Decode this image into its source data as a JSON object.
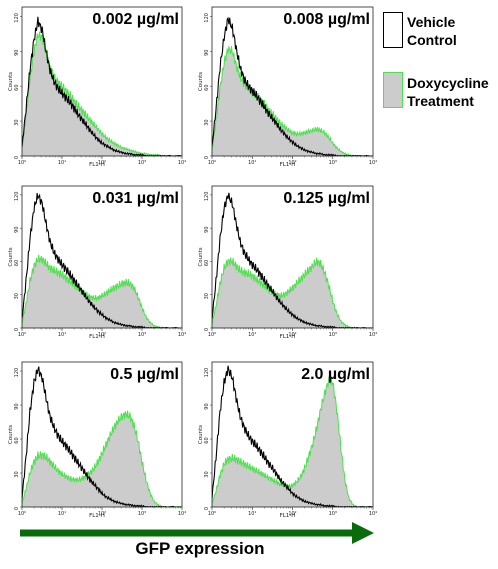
{
  "legend": {
    "vehicle_label": "Vehicle\nControl",
    "dox_label": "Doxycycline\nTreatment"
  },
  "colors": {
    "vehicle_line": "#000000",
    "dox_line": "#4ee04e",
    "dox_fill": "#cccccc",
    "arrow": "#0a6b0a"
  },
  "arrow_label": "GFP expression",
  "chart_data": [
    {
      "type": "area",
      "panel_label": "0.002 µg/ml",
      "xlabel": "FL1-H",
      "ylabel": "Counts",
      "x_scale": "log",
      "xlim": [
        1,
        10000
      ],
      "x_tick_labels": [
        "10⁰",
        "10¹",
        "10²",
        "10³",
        "10⁴"
      ],
      "y_tick_labels": [
        "0",
        "30",
        "60",
        "90",
        "120"
      ],
      "ylim": [
        0,
        128
      ],
      "series": [
        {
          "fill": "none",
          "x": [
            1.0,
            1.26,
            1.58,
            2.0,
            2.5,
            3.2,
            4.0,
            5.0,
            6.3,
            8.0,
            10,
            12.6,
            16,
            20,
            25,
            32,
            40,
            50,
            63,
            80,
            100,
            126,
            160,
            200,
            250,
            320,
            400,
            500,
            630,
            800,
            1000,
            1260,
            1600,
            2000,
            2500,
            3200,
            4000,
            10000
          ],
          "y": [
            8,
            40,
            74,
            100,
            116,
            108,
            90,
            74,
            64,
            58,
            54,
            50,
            46,
            41,
            36,
            31,
            27,
            22,
            18,
            14,
            11,
            9,
            7,
            5,
            4,
            3,
            2,
            2,
            1,
            1,
            1,
            0,
            0,
            0,
            0,
            0,
            0,
            0
          ]
        },
        {
          "fill": "gray",
          "x": [
            1.0,
            1.26,
            1.58,
            2.0,
            2.5,
            3.2,
            4.0,
            5.0,
            6.3,
            8.0,
            10,
            12.6,
            16,
            20,
            25,
            32,
            40,
            50,
            63,
            80,
            100,
            126,
            160,
            200,
            250,
            320,
            400,
            500,
            630,
            800,
            1000,
            1260,
            1600,
            2000,
            2500,
            3200,
            4000,
            10000
          ],
          "y": [
            6,
            35,
            66,
            90,
            104,
            102,
            88,
            76,
            68,
            63,
            60,
            56,
            52,
            47,
            43,
            39,
            35,
            31,
            27,
            23,
            19,
            16,
            13,
            11,
            9,
            7,
            6,
            5,
            4,
            3,
            2,
            2,
            1,
            1,
            1,
            0,
            0,
            0
          ]
        }
      ]
    },
    {
      "type": "area",
      "panel_label": "0.008 µg/ml",
      "xlabel": "FL1-H",
      "ylabel": "Counts",
      "x_scale": "log",
      "xlim": [
        1,
        10000
      ],
      "x_tick_labels": [
        "10⁰",
        "10¹",
        "10²",
        "10³",
        "10⁴"
      ],
      "y_tick_labels": [
        "0",
        "30",
        "60",
        "90",
        "120"
      ],
      "ylim": [
        0,
        128
      ],
      "series": [
        {
          "fill": "none",
          "x": [
            1.0,
            1.26,
            1.58,
            2.0,
            2.5,
            3.2,
            4.0,
            5.0,
            6.3,
            8.0,
            10,
            12.6,
            16,
            20,
            25,
            32,
            40,
            50,
            63,
            80,
            100,
            126,
            160,
            200,
            250,
            320,
            400,
            500,
            630,
            800,
            1000,
            1260,
            1600,
            2000,
            2500,
            3200,
            4000,
            10000
          ],
          "y": [
            8,
            40,
            76,
            102,
            118,
            110,
            92,
            76,
            66,
            60,
            56,
            52,
            47,
            42,
            37,
            32,
            28,
            23,
            19,
            15,
            12,
            9,
            7,
            5,
            4,
            3,
            2,
            2,
            1,
            1,
            1,
            0,
            0,
            0,
            0,
            0,
            0,
            0
          ]
        },
        {
          "fill": "gray",
          "x": [
            1.0,
            1.26,
            1.58,
            2.0,
            2.5,
            3.2,
            4.0,
            5.0,
            6.3,
            8.0,
            10,
            12.6,
            16,
            20,
            25,
            32,
            40,
            50,
            63,
            80,
            100,
            126,
            160,
            200,
            250,
            320,
            400,
            500,
            630,
            800,
            1000,
            1260,
            1600,
            2000,
            2500,
            3200,
            4000,
            10000
          ],
          "y": [
            5,
            30,
            58,
            80,
            92,
            90,
            78,
            68,
            62,
            58,
            55,
            52,
            48,
            44,
            40,
            36,
            32,
            28,
            25,
            22,
            20,
            19,
            19,
            20,
            21,
            22,
            23,
            22,
            20,
            16,
            11,
            7,
            4,
            2,
            1,
            0,
            0,
            0
          ]
        }
      ]
    },
    {
      "type": "area",
      "panel_label": "0.031 µg/ml",
      "xlabel": "FL1-H",
      "ylabel": "Counts",
      "x_scale": "log",
      "xlim": [
        1,
        10000
      ],
      "x_tick_labels": [
        "10⁰",
        "10¹",
        "10²",
        "10³",
        "10⁴"
      ],
      "y_tick_labels": [
        "0",
        "30",
        "60",
        "90",
        "120"
      ],
      "ylim": [
        0,
        128
      ],
      "series": [
        {
          "fill": "none",
          "x": [
            1.0,
            1.26,
            1.58,
            2.0,
            2.5,
            3.2,
            4.0,
            5.0,
            6.3,
            8.0,
            10,
            12.6,
            16,
            20,
            25,
            32,
            40,
            50,
            63,
            80,
            100,
            126,
            160,
            200,
            250,
            320,
            400,
            500,
            630,
            800,
            1000,
            1260,
            1600,
            2000,
            2500,
            3200,
            4000,
            10000
          ],
          "y": [
            8,
            42,
            80,
            108,
            120,
            112,
            94,
            78,
            68,
            62,
            57,
            53,
            48,
            43,
            38,
            33,
            28,
            23,
            19,
            15,
            12,
            9,
            7,
            5,
            4,
            3,
            2,
            2,
            1,
            1,
            1,
            0,
            0,
            0,
            0,
            0,
            0,
            0
          ]
        },
        {
          "fill": "gray",
          "x": [
            1.0,
            1.26,
            1.58,
            2.0,
            2.5,
            3.2,
            4.0,
            5.0,
            6.3,
            8.0,
            10,
            12.6,
            16,
            20,
            25,
            32,
            40,
            50,
            63,
            80,
            100,
            126,
            160,
            200,
            250,
            320,
            400,
            500,
            630,
            800,
            1000,
            1260,
            1600,
            2000,
            2500,
            3200,
            4000,
            10000
          ],
          "y": [
            4,
            22,
            42,
            56,
            62,
            62,
            58,
            54,
            52,
            50,
            48,
            45,
            42,
            39,
            36,
            33,
            30,
            28,
            27,
            27,
            29,
            31,
            34,
            36,
            38,
            40,
            41,
            40,
            36,
            28,
            18,
            10,
            5,
            2,
            1,
            0,
            0,
            0
          ]
        }
      ]
    },
    {
      "type": "area",
      "panel_label": "0.125 µg/ml",
      "xlabel": "FL1-H",
      "ylabel": "Counts",
      "x_scale": "log",
      "xlim": [
        1,
        10000
      ],
      "x_tick_labels": [
        "10⁰",
        "10¹",
        "10²",
        "10³",
        "10⁴"
      ],
      "y_tick_labels": [
        "0",
        "30",
        "60",
        "90",
        "120"
      ],
      "ylim": [
        0,
        128
      ],
      "series": [
        {
          "fill": "none",
          "x": [
            1.0,
            1.26,
            1.58,
            2.0,
            2.5,
            3.2,
            4.0,
            5.0,
            6.3,
            8.0,
            10,
            12.6,
            16,
            20,
            25,
            32,
            40,
            50,
            63,
            80,
            100,
            126,
            160,
            200,
            250,
            320,
            400,
            500,
            630,
            800,
            1000,
            1260,
            1600,
            2000,
            2500,
            3200,
            4000,
            10000
          ],
          "y": [
            8,
            42,
            80,
            108,
            120,
            112,
            94,
            78,
            68,
            62,
            57,
            53,
            48,
            43,
            38,
            33,
            28,
            23,
            19,
            15,
            12,
            9,
            7,
            5,
            4,
            3,
            2,
            2,
            1,
            1,
            1,
            0,
            0,
            0,
            0,
            0,
            0,
            0
          ]
        },
        {
          "fill": "gray",
          "x": [
            1.0,
            1.26,
            1.58,
            2.0,
            2.5,
            3.2,
            4.0,
            5.0,
            6.3,
            8.0,
            10,
            12.6,
            16,
            20,
            25,
            32,
            40,
            50,
            63,
            80,
            100,
            126,
            160,
            200,
            250,
            320,
            400,
            500,
            630,
            800,
            1000,
            1260,
            1600,
            2000,
            2500,
            3200,
            4000,
            10000
          ],
          "y": [
            4,
            20,
            40,
            54,
            60,
            60,
            56,
            52,
            50,
            49,
            47,
            44,
            41,
            38,
            35,
            32,
            30,
            29,
            30,
            33,
            36,
            40,
            44,
            48,
            52,
            56,
            60,
            58,
            50,
            38,
            24,
            13,
            6,
            3,
            1,
            0,
            0,
            0
          ]
        }
      ]
    },
    {
      "type": "area",
      "panel_label": "0.5 µg/ml",
      "xlabel": "FL1-H",
      "ylabel": "Counts",
      "x_scale": "log",
      "xlim": [
        1,
        10000
      ],
      "x_tick_labels": [
        "10⁰",
        "10¹",
        "10²",
        "10³",
        "10⁴"
      ],
      "y_tick_labels": [
        "0",
        "30",
        "60",
        "90",
        "120"
      ],
      "ylim": [
        0,
        128
      ],
      "series": [
        {
          "fill": "none",
          "x": [
            1.0,
            1.26,
            1.58,
            2.0,
            2.5,
            3.2,
            4.0,
            5.0,
            6.3,
            8.0,
            10,
            12.6,
            16,
            20,
            25,
            32,
            40,
            50,
            63,
            80,
            100,
            126,
            160,
            200,
            250,
            320,
            400,
            500,
            630,
            800,
            1000,
            1260,
            1600,
            2000,
            2500,
            3200,
            4000,
            10000
          ],
          "y": [
            8,
            44,
            84,
            110,
            122,
            114,
            96,
            80,
            70,
            63,
            58,
            54,
            49,
            44,
            39,
            34,
            29,
            24,
            20,
            16,
            12,
            9,
            7,
            5,
            4,
            3,
            2,
            2,
            1,
            1,
            1,
            0,
            0,
            0,
            0,
            0,
            0,
            0
          ]
        },
        {
          "fill": "gray",
          "x": [
            1.0,
            1.26,
            1.58,
            2.0,
            2.5,
            3.2,
            4.0,
            5.0,
            6.3,
            8.0,
            10,
            12.6,
            16,
            20,
            25,
            32,
            40,
            50,
            63,
            80,
            100,
            126,
            160,
            200,
            250,
            320,
            400,
            500,
            630,
            800,
            1000,
            1260,
            1600,
            2000,
            2500,
            3200,
            4000,
            10000
          ],
          "y": [
            3,
            16,
            30,
            40,
            45,
            46,
            44,
            40,
            36,
            32,
            29,
            27,
            25,
            24,
            24,
            25,
            27,
            30,
            34,
            40,
            47,
            55,
            63,
            70,
            76,
            80,
            82,
            80,
            72,
            58,
            40,
            24,
            12,
            5,
            2,
            0,
            0,
            0
          ]
        }
      ]
    },
    {
      "type": "area",
      "panel_label": "2.0 µg/ml",
      "xlabel": "FL1-H",
      "ylabel": "Counts",
      "x_scale": "log",
      "xlim": [
        1,
        10000
      ],
      "x_tick_labels": [
        "10⁰",
        "10¹",
        "10²",
        "10³",
        "10⁴"
      ],
      "y_tick_labels": [
        "0",
        "30",
        "60",
        "90",
        "120"
      ],
      "ylim": [
        0,
        128
      ],
      "series": [
        {
          "fill": "none",
          "x": [
            1.0,
            1.26,
            1.58,
            2.0,
            2.5,
            3.2,
            4.0,
            5.0,
            6.3,
            8.0,
            10,
            12.6,
            16,
            20,
            25,
            32,
            40,
            50,
            63,
            80,
            100,
            126,
            160,
            200,
            250,
            320,
            400,
            500,
            630,
            800,
            1000,
            1260,
            1600,
            2000,
            2500,
            3200,
            4000,
            10000
          ],
          "y": [
            8,
            44,
            84,
            110,
            122,
            114,
            96,
            80,
            70,
            63,
            58,
            54,
            49,
            44,
            39,
            34,
            29,
            24,
            20,
            16,
            12,
            9,
            7,
            5,
            4,
            3,
            2,
            2,
            1,
            1,
            1,
            0,
            0,
            0,
            0,
            0,
            0,
            0
          ]
        },
        {
          "fill": "gray",
          "x": [
            1.0,
            1.26,
            1.58,
            2.0,
            2.5,
            3.2,
            4.0,
            5.0,
            6.3,
            8.0,
            10,
            12.6,
            16,
            20,
            25,
            32,
            40,
            50,
            63,
            80,
            100,
            126,
            160,
            200,
            250,
            320,
            400,
            500,
            630,
            800,
            1000,
            1260,
            1600,
            2000,
            2500,
            3200,
            4000,
            10000
          ],
          "y": [
            3,
            14,
            28,
            38,
            42,
            43,
            42,
            40,
            38,
            36,
            34,
            32,
            30,
            28,
            26,
            24,
            22,
            20,
            19,
            18,
            19,
            22,
            27,
            34,
            44,
            56,
            70,
            86,
            100,
            112,
            110,
            86,
            52,
            24,
            8,
            2,
            0,
            0
          ]
        }
      ]
    }
  ]
}
